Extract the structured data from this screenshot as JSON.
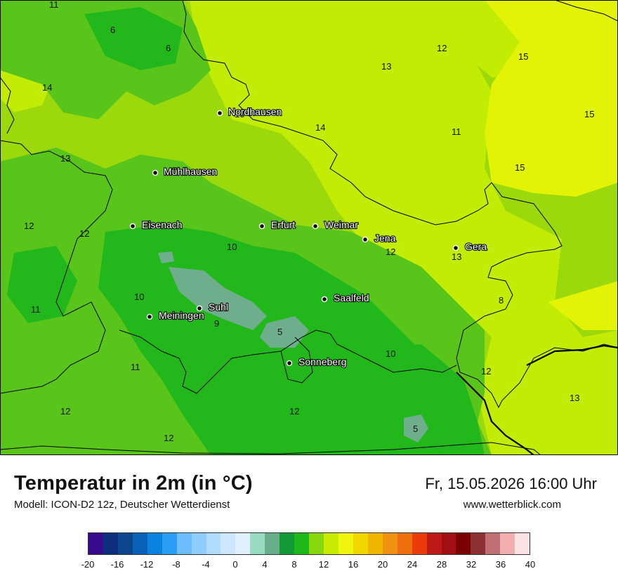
{
  "map": {
    "cities": [
      {
        "name": "Nordhausen",
        "label": "Nordhausen"
      },
      {
        "name": "Mühlhausen",
        "label": "Mühlhausen"
      },
      {
        "name": "Eisenach",
        "label": "Eisenach"
      },
      {
        "name": "Erfurt",
        "label": "Erfurt"
      },
      {
        "name": "Weimar",
        "label": "Weimar"
      },
      {
        "name": "Jena",
        "label": "Jena"
      },
      {
        "name": "Gera",
        "label": "Gera"
      },
      {
        "name": "Saalfeld",
        "label": "Saalfeld"
      },
      {
        "name": "Suhl",
        "label": "Suhl"
      },
      {
        "name": "Meiningen",
        "label": "Meiningen"
      },
      {
        "name": "Sonneberg",
        "label": "Sonneberg"
      }
    ],
    "temperature_values": [
      "11",
      "6",
      "6",
      "12",
      "13",
      "15",
      "14",
      "13",
      "14",
      "11",
      "15",
      "13",
      "12",
      "15",
      "12",
      "12",
      "10",
      "12",
      "13",
      "10",
      "11",
      "9",
      "5",
      "8",
      "10",
      "11",
      "12",
      "13",
      "12",
      "12",
      "5",
      "12"
    ]
  },
  "header": {
    "title": "Temperatur in 2m (in °C)",
    "model": "Modell: ICON-D2 12z, Deutscher Wetterdienst",
    "datetime": "Fr, 15.05.2026 16:00 Uhr",
    "site": "www.wetterblick.com"
  },
  "legend": {
    "colors": [
      "#3a0a8c",
      "#0b2f7a",
      "#0d468f",
      "#0a62b8",
      "#0a82e0",
      "#2a9ef5",
      "#6cbdfb",
      "#8ecdfc",
      "#b0dcfd",
      "#cce6fb",
      "#e2f0fd",
      "#97dcc0",
      "#67af8a",
      "#119a36",
      "#1fb81a",
      "#88d60c",
      "#c7ec02",
      "#eef50e",
      "#f2d600",
      "#f1b600",
      "#f19112",
      "#ef6e0d",
      "#ea3b09",
      "#bd1919",
      "#a10f14",
      "#7a0101",
      "#8d3033",
      "#c07074",
      "#f1aeae",
      "#fde2e3"
    ],
    "ticks": [
      "-20",
      "-16",
      "-12",
      "-8",
      "-4",
      "0",
      "4",
      "8",
      "12",
      "16",
      "20",
      "24",
      "28",
      "32",
      "36",
      "40"
    ],
    "min": -20,
    "max": 40,
    "step": 2
  }
}
